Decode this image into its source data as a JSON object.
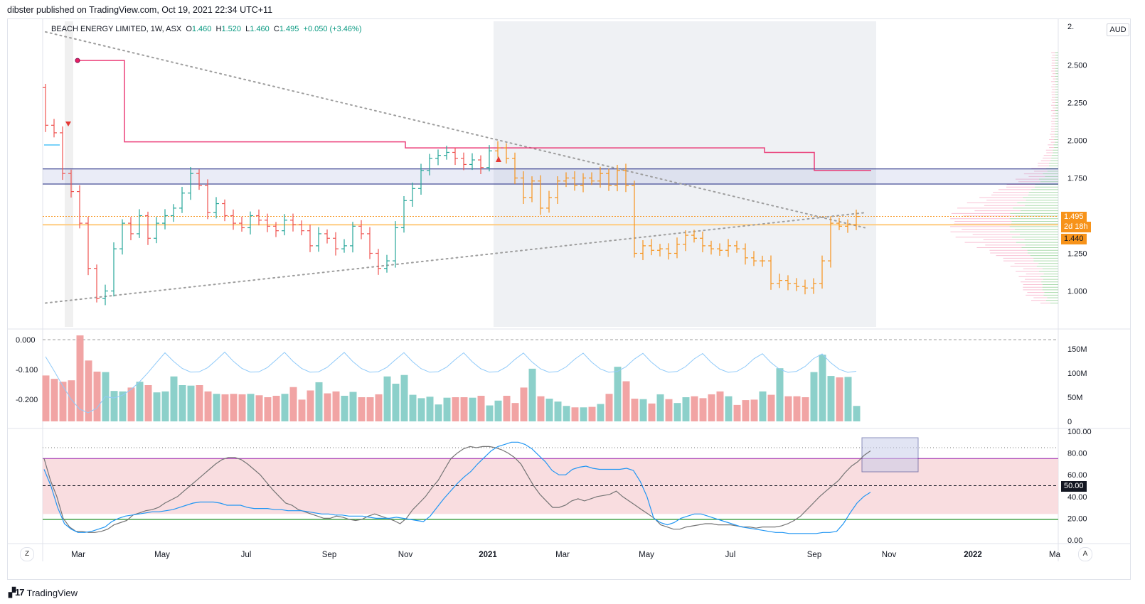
{
  "header": {
    "published": "dibster published on TradingView.com, Oct 19, 2021 22:34 UTC+11"
  },
  "legend": {
    "symbol": "BEACH ENERGY LIMITED, 1W, ASX",
    "o_label": "O",
    "o": "1.460",
    "h_label": "H",
    "h": "1.520",
    "l_label": "L",
    "l": "1.460",
    "c_label": "C",
    "c": "1.495",
    "change": "+0.050 (+3.46%)"
  },
  "currency": "AUD",
  "price_tags": {
    "last": "1.495",
    "countdown": "2d 18h",
    "level": "1.440",
    "rsi_mid": "50.00"
  },
  "colors": {
    "up": "#26a69a",
    "down": "#ef5350",
    "orange": "#f7931a",
    "pink": "#e91e63",
    "navy": "#1a237e",
    "gray_dots": "#9e9e9e"
  },
  "time_axis": [
    "Mar",
    "May",
    "Jul",
    "Sep",
    "Nov",
    "2021",
    "Mar",
    "May",
    "Jul",
    "Sep",
    "Nov",
    "2022",
    "Ma"
  ],
  "brand": {
    "name": "TradingView",
    "zoom_left": "Z",
    "zoom_right": "A"
  },
  "chart_data": [
    {
      "type": "ohlc",
      "title": "BEACH ENERGY LIMITED, 1W, ASX",
      "ylim": [
        0.85,
        2.7
      ],
      "y_ticks": [
        "2.500",
        "2.250",
        "2.000",
        "1.750",
        "1.250",
        "1.000"
      ],
      "y_top_clipped": "2.",
      "closes": [
        2.1,
        2.05,
        1.78,
        1.66,
        1.45,
        1.15,
        0.95,
        1.0,
        1.28,
        1.45,
        1.38,
        1.5,
        1.35,
        1.45,
        1.5,
        1.55,
        1.65,
        1.78,
        1.7,
        1.52,
        1.58,
        1.5,
        1.45,
        1.42,
        1.5,
        1.47,
        1.43,
        1.4,
        1.47,
        1.44,
        1.4,
        1.3,
        1.38,
        1.35,
        1.28,
        1.3,
        1.43,
        1.38,
        1.25,
        1.15,
        1.2,
        1.42,
        1.6,
        1.68,
        1.8,
        1.88,
        1.9,
        1.92,
        1.88,
        1.84,
        1.87,
        1.82,
        1.93,
        1.95,
        1.88,
        1.75,
        1.62,
        1.73,
        1.55,
        1.62,
        1.73,
        1.75,
        1.7,
        1.75,
        1.73,
        1.78,
        1.7,
        1.8,
        1.7,
        1.25,
        1.3,
        1.27,
        1.28,
        1.25,
        1.31,
        1.37,
        1.35,
        1.3,
        1.28,
        1.27,
        1.3,
        1.28,
        1.22,
        1.2,
        1.2,
        1.05,
        1.07,
        1.05,
        1.03,
        1.02,
        1.05,
        1.2,
        1.45,
        1.43,
        1.44,
        1.495
      ],
      "horizontal_levels": {
        "zone_top": 1.81,
        "zone_bottom": 1.71,
        "orange_dotted": 1.495,
        "orange_solid": 1.44
      },
      "pink_stepline": [
        2.53,
        2.53,
        1.99,
        1.99,
        1.95,
        1.95,
        1.92,
        1.8,
        1.8
      ],
      "trendlines": [
        {
          "from": [
            0,
            2.72
          ],
          "to": [
            96,
            1.42
          ]
        },
        {
          "from": [
            0,
            0.92
          ],
          "to": [
            96,
            1.52
          ]
        }
      ]
    },
    {
      "type": "bar",
      "title": "Volume",
      "y_ticks_right": [
        "150M",
        "100M",
        "50M",
        "0"
      ],
      "y_ticks_left": [
        "0.000",
        "-0.100",
        "-0.200"
      ],
      "volume_millions": [
        95,
        88,
        82,
        85,
        178,
        126,
        103,
        102,
        63,
        62,
        70,
        82,
        75,
        60,
        62,
        93,
        75,
        74,
        75,
        62,
        57,
        56,
        57,
        56,
        57,
        54,
        50,
        53,
        57,
        71,
        45,
        64,
        81,
        58,
        62,
        53,
        61,
        50,
        50,
        56,
        93,
        78,
        96,
        55,
        48,
        51,
        35,
        49,
        50,
        50,
        49,
        53,
        33,
        43,
        53,
        38,
        70,
        109,
        52,
        47,
        41,
        32,
        29,
        29,
        30,
        36,
        57,
        113,
        83,
        47,
        46,
        37,
        56,
        46,
        38,
        50,
        52,
        48,
        56,
        62,
        52,
        34,
        44,
        45,
        62,
        55,
        110,
        52,
        52,
        50,
        102,
        138,
        94,
        91,
        92,
        32
      ]
    },
    {
      "type": "line",
      "title": "RSI",
      "ylim": [
        0,
        100
      ],
      "y_ticks": [
        "100.00",
        "80.00",
        "60.00",
        "40.00",
        "20.00",
        "0.00"
      ],
      "levels": {
        "upper_dotted": 85,
        "purple": 75,
        "mid_dashed": 50,
        "green": 19
      },
      "series": [
        {
          "name": "",
          "values": [
            75,
            55,
            40,
            20,
            12,
            8,
            8,
            7,
            7,
            8,
            10,
            14,
            16,
            18,
            23,
            25,
            27,
            28,
            30,
            34,
            37,
            40,
            45,
            50,
            55,
            60,
            65,
            70,
            74,
            76,
            76,
            74,
            70,
            65,
            60,
            53,
            46,
            40,
            34,
            32,
            28,
            26,
            24,
            22,
            20,
            20,
            22,
            21,
            19,
            18,
            19,
            22,
            24,
            22,
            20,
            18,
            15,
            20,
            28,
            34,
            40,
            48,
            55,
            65,
            75,
            80,
            84,
            86,
            85,
            86,
            86,
            85,
            83,
            80,
            76,
            70,
            60,
            50,
            42,
            36,
            30,
            30,
            32,
            36,
            38,
            36,
            38,
            40,
            41,
            42,
            45,
            40,
            36,
            32,
            28,
            24,
            20,
            14,
            12,
            10,
            10,
            12,
            13,
            14,
            15,
            15,
            14,
            14,
            14,
            13,
            12,
            12,
            11,
            12,
            12,
            12,
            13,
            15,
            18,
            22,
            28,
            34,
            40,
            45,
            50,
            55,
            62,
            68,
            72,
            78,
            82
          ]
        },
        {
          "name": "",
          "values": [
            65,
            50,
            30,
            15,
            10,
            7,
            7,
            8,
            10,
            12,
            17,
            20,
            22,
            23,
            24,
            25,
            26,
            26,
            27,
            28,
            30,
            32,
            34,
            35,
            35,
            35,
            34,
            32,
            32,
            32,
            30,
            29,
            29,
            29,
            28,
            28,
            27,
            27,
            27,
            26,
            25,
            24,
            24,
            23,
            23,
            22,
            22,
            22,
            21,
            20,
            20,
            20,
            21,
            20,
            19,
            18,
            17,
            22,
            30,
            38,
            45,
            52,
            58,
            63,
            70,
            76,
            82,
            86,
            88,
            90,
            90,
            88,
            84,
            78,
            72,
            64,
            60,
            60,
            65,
            67,
            68,
            66,
            65,
            65,
            65,
            65,
            66,
            64,
            54,
            40,
            20,
            16,
            14,
            16,
            20,
            22,
            24,
            24,
            22,
            20,
            18,
            16,
            14,
            12,
            11,
            10,
            9,
            8,
            7,
            7,
            6,
            6,
            6,
            6,
            6,
            7,
            7,
            8,
            15,
            25,
            34,
            40,
            44
          ]
        }
      ]
    }
  ]
}
